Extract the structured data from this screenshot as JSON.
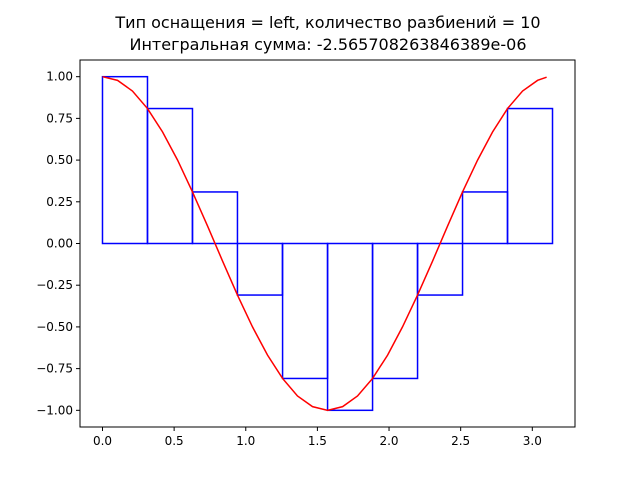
{
  "chart_data": {
    "type": "line",
    "title": "Тип оснащения = left, количество разбиений = 10",
    "subtitle": "Интегральная сумма: -2.565708263846389e-06",
    "xlim": [
      -0.157,
      3.298
    ],
    "ylim": [
      -1.1,
      1.1
    ],
    "xticks": [
      0.0,
      0.5,
      1.0,
      1.5,
      2.0,
      2.5,
      3.0
    ],
    "xtick_labels": [
      "0.0",
      "0.5",
      "1.0",
      "1.5",
      "2.0",
      "2.5",
      "3.0"
    ],
    "yticks": [
      -1.0,
      -0.75,
      -0.5,
      -0.25,
      0.0,
      0.25,
      0.5,
      0.75,
      1.0
    ],
    "ytick_labels": [
      "−1.00",
      "−0.75",
      "−0.50",
      "−0.25",
      "0.00",
      "0.25",
      "0.50",
      "0.75",
      "1.00"
    ],
    "grid": false,
    "series": [
      {
        "kind": "curve",
        "function": "cos(2x)",
        "color": "#ff0000",
        "x": [
          0.0,
          0.105,
          0.209,
          0.314,
          0.419,
          0.524,
          0.628,
          0.733,
          0.838,
          0.942,
          1.047,
          1.152,
          1.257,
          1.361,
          1.466,
          1.571,
          1.676,
          1.78,
          1.885,
          1.99,
          2.094,
          2.199,
          2.304,
          2.409,
          2.513,
          2.618,
          2.723,
          2.827,
          2.932,
          3.037,
          3.1
        ],
        "y": [
          1.0,
          0.978,
          0.914,
          0.809,
          0.669,
          0.5,
          0.309,
          0.105,
          -0.105,
          -0.309,
          -0.5,
          -0.669,
          -0.809,
          -0.914,
          -0.978,
          -1.0,
          -0.978,
          -0.914,
          -0.809,
          -0.669,
          -0.5,
          -0.309,
          -0.105,
          0.105,
          0.309,
          0.5,
          0.669,
          0.809,
          0.914,
          0.978,
          0.997
        ]
      },
      {
        "kind": "rectangles",
        "color": "#0000ff",
        "left_edges": [
          0.0,
          0.314,
          0.628,
          0.942,
          1.257,
          1.571,
          1.885,
          2.199,
          2.513,
          2.827
        ],
        "width": 0.314,
        "heights": [
          1.0,
          0.809,
          0.309,
          -0.309,
          -0.809,
          -1.0,
          -0.809,
          -0.309,
          0.309,
          0.809
        ]
      }
    ]
  }
}
